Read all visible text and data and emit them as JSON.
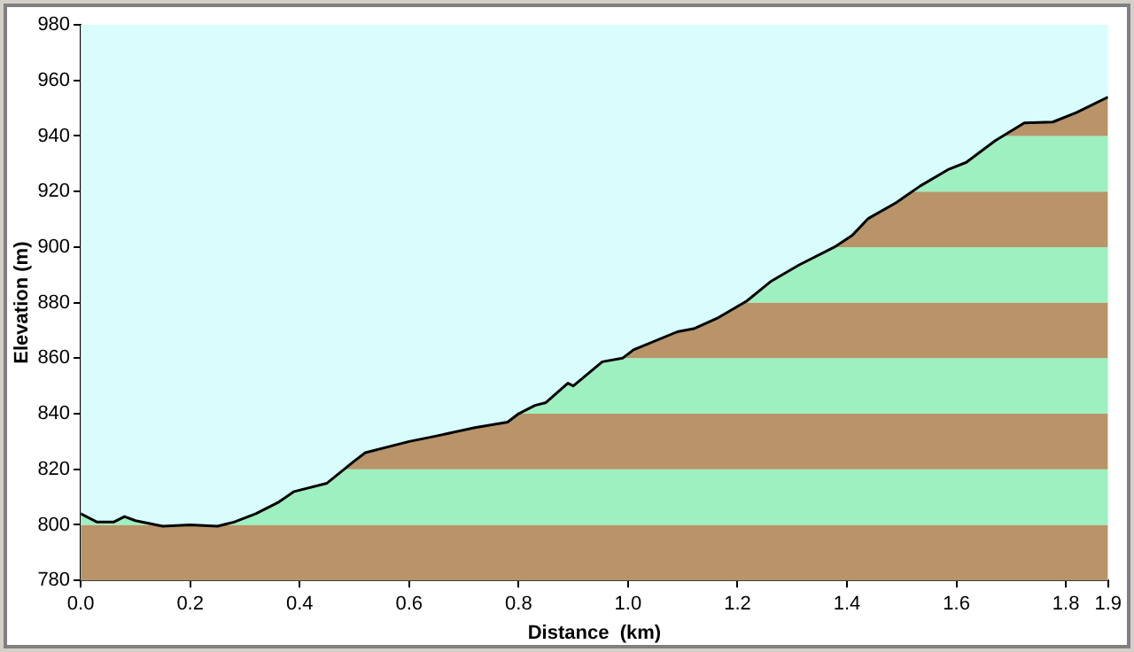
{
  "chart_data": {
    "type": "line",
    "xlabel": "Distance  (km)",
    "ylabel": "Elevation (m)",
    "xlim": [
      0,
      1.877
    ],
    "xticks": [
      {
        "value": 0,
        "label": "0.0"
      },
      {
        "value": 0.2,
        "label": "0.2"
      },
      {
        "value": 0.4,
        "label": "0.4"
      },
      {
        "value": 0.6,
        "label": "0.6"
      },
      {
        "value": 0.8,
        "label": "0.8"
      },
      {
        "value": 1,
        "label": "1.0"
      },
      {
        "value": 1.2,
        "label": "1.2"
      },
      {
        "value": 1.4,
        "label": "1.4"
      },
      {
        "value": 1.6,
        "label": "1.6"
      },
      {
        "value": 1.8,
        "label": "1.8"
      },
      {
        "value": 1.877,
        "label": "1.9"
      }
    ],
    "ylim": [
      780,
      980
    ],
    "yticks": [
      780,
      800,
      820,
      840,
      860,
      880,
      900,
      920,
      940,
      960,
      980
    ],
    "grid": false,
    "legend": false,
    "marker": "none",
    "line_style": "solid",
    "series": [
      {
        "color": "#000000",
        "x": [
          0,
          0.03,
          0.06,
          0.08,
          0.1,
          0.15,
          0.2,
          0.25,
          0.28,
          0.32,
          0.36,
          0.39,
          0.45,
          0.5,
          0.52,
          0.6,
          0.65,
          0.72,
          0.78,
          0.8,
          0.83,
          0.85,
          0.89,
          0.9,
          0.953,
          0.99,
          1.01,
          1.09,
          1.12,
          1.165,
          1.217,
          1.26,
          1.312,
          1.377,
          1.41,
          1.439,
          1.49,
          1.534,
          1.586,
          1.618,
          1.671,
          1.724,
          1.776,
          1.819,
          1.877
        ],
        "values": [
          804,
          801,
          801,
          803,
          801.5,
          799.5,
          800,
          799.5,
          801,
          804,
          808,
          812,
          815,
          823,
          826,
          830,
          832,
          835,
          837,
          840,
          843,
          844,
          851,
          850,
          858.7,
          860,
          863,
          869.5,
          870.6,
          874.6,
          880.6,
          887.5,
          893.5,
          900,
          904.3,
          910.3,
          916,
          922,
          928,
          930.5,
          938.3,
          944.7,
          945,
          948.4,
          954
        ]
      }
    ],
    "bands": [
      {
        "axis": "y",
        "from": 780,
        "to": 800,
        "color": "#b89468"
      },
      {
        "axis": "y",
        "from": 800,
        "to": 820,
        "color": "#9ef0c0"
      },
      {
        "axis": "y",
        "from": 820,
        "to": 840,
        "color": "#b89468"
      },
      {
        "axis": "y",
        "from": 840,
        "to": 860,
        "color": "#9ef0c0"
      },
      {
        "axis": "y",
        "from": 860,
        "to": 880,
        "color": "#b89468"
      },
      {
        "axis": "y",
        "from": 880,
        "to": 900,
        "color": "#9ef0c0"
      },
      {
        "axis": "y",
        "from": 900,
        "to": 920,
        "color": "#b89468"
      },
      {
        "axis": "y",
        "from": 920,
        "to": 940,
        "color": "#9ef0c0"
      },
      {
        "axis": "y",
        "from": 940,
        "to": 960,
        "color": "#b89468"
      }
    ]
  }
}
